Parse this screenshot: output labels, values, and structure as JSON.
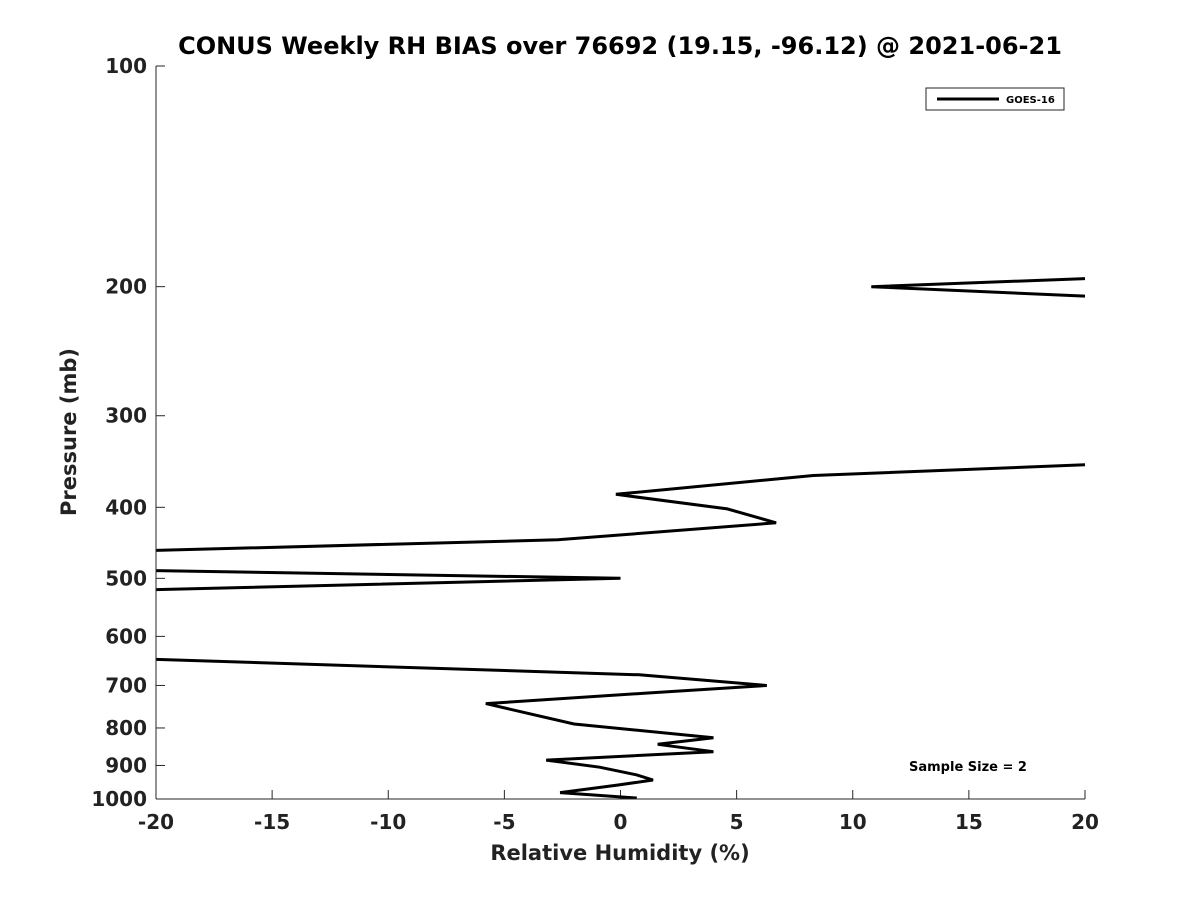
{
  "chart_data": {
    "type": "line",
    "title": "CONUS Weekly RH BIAS over 76692 (19.15, -96.12) @ 2021-06-21",
    "xlabel": "Relative Humidity (%)",
    "ylabel": "Pressure (mb)",
    "xlim": [
      -20,
      20
    ],
    "ylim": [
      100,
      1000
    ],
    "y_scale": "log",
    "y_reversed": true,
    "grid": false,
    "legend_position": "top-right",
    "x_ticks": [
      -20,
      -15,
      -10,
      -5,
      0,
      5,
      10,
      15,
      20
    ],
    "x_tick_labels": [
      "-20",
      "-15",
      "-10",
      "-5",
      "0",
      "5",
      "10",
      "15",
      "20"
    ],
    "y_ticks": [
      100,
      200,
      300,
      400,
      500,
      600,
      700,
      800,
      900,
      1000
    ],
    "y_tick_labels": [
      "100",
      "200",
      "300",
      "400",
      "500",
      "600",
      "700",
      "800",
      "900",
      "1000"
    ],
    "series": [
      {
        "name": "GOES-16",
        "color": "#000000",
        "segments": [
          [
            {
              "x": 20,
              "y": 195
            },
            {
              "x": 10.8,
              "y": 200
            },
            {
              "x": 20,
              "y": 206
            }
          ],
          [
            {
              "x": 20,
              "y": 350
            },
            {
              "x": 8.3,
              "y": 362
            },
            {
              "x": -0.2,
              "y": 384
            },
            {
              "x": 4.6,
              "y": 402
            },
            {
              "x": 6.7,
              "y": 420
            },
            {
              "x": -2.7,
              "y": 443
            },
            {
              "x": -20,
              "y": 458
            }
          ],
          [
            {
              "x": -20,
              "y": 488
            },
            {
              "x": 0,
              "y": 500
            },
            {
              "x": -20,
              "y": 518
            }
          ],
          [
            {
              "x": -20,
              "y": 645
            },
            {
              "x": 0.8,
              "y": 677
            },
            {
              "x": 6.3,
              "y": 700
            },
            {
              "x": 1.1,
              "y": 717
            },
            {
              "x": -5.8,
              "y": 741
            },
            {
              "x": -2.0,
              "y": 790
            },
            {
              "x": 4.0,
              "y": 825
            },
            {
              "x": 1.6,
              "y": 842
            },
            {
              "x": 4.0,
              "y": 862
            },
            {
              "x": -3.2,
              "y": 885
            },
            {
              "x": -0.9,
              "y": 905
            },
            {
              "x": 0.7,
              "y": 927
            },
            {
              "x": 1.4,
              "y": 942
            },
            {
              "x": -0.1,
              "y": 957
            },
            {
              "x": -2.6,
              "y": 980
            },
            {
              "x": 0.7,
              "y": 997
            }
          ]
        ]
      }
    ],
    "annotations": [
      "Sample Size = 2"
    ]
  }
}
